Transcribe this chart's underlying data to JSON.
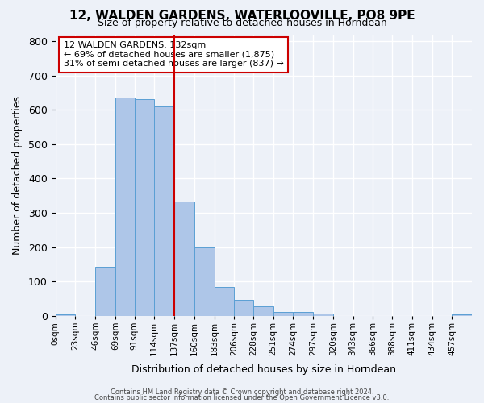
{
  "title": "12, WALDEN GARDENS, WATERLOOVILLE, PO8 9PE",
  "subtitle": "Size of property relative to detached houses in Horndean",
  "xlabel": "Distribution of detached houses by size in Horndean",
  "ylabel": "Number of detached properties",
  "bin_labels": [
    "0sqm",
    "23sqm",
    "46sqm",
    "69sqm",
    "91sqm",
    "114sqm",
    "137sqm",
    "160sqm",
    "183sqm",
    "206sqm",
    "228sqm",
    "251sqm",
    "274sqm",
    "297sqm",
    "320sqm",
    "343sqm",
    "366sqm",
    "388sqm",
    "411sqm",
    "434sqm",
    "457sqm"
  ],
  "bin_edges": [
    0,
    23,
    46,
    69,
    91,
    114,
    137,
    160,
    183,
    206,
    228,
    251,
    274,
    297,
    320,
    343,
    366,
    388,
    411,
    434,
    457,
    480
  ],
  "bar_heights": [
    5,
    0,
    143,
    635,
    630,
    610,
    333,
    200,
    83,
    47,
    27,
    11,
    11,
    7,
    0,
    0,
    0,
    0,
    0,
    0,
    5
  ],
  "bar_color": "#aec6e8",
  "bar_edge_color": "#5a9fd4",
  "vline_x": 137,
  "vline_color": "#cc0000",
  "ylim": [
    0,
    820
  ],
  "yticks": [
    0,
    100,
    200,
    300,
    400,
    500,
    600,
    700,
    800
  ],
  "property_label": "12 WALDEN GARDENS: 132sqm",
  "annotation_line1": "← 69% of detached houses are smaller (1,875)",
  "annotation_line2": "31% of semi-detached houses are larger (837) →",
  "annotation_box_color": "#ffffff",
  "annotation_box_edge": "#cc0000",
  "footer1": "Contains HM Land Registry data © Crown copyright and database right 2024.",
  "footer2": "Contains public sector information licensed under the Open Government Licence v3.0.",
  "bg_color": "#edf1f8",
  "plot_bg_color": "#edf1f8"
}
